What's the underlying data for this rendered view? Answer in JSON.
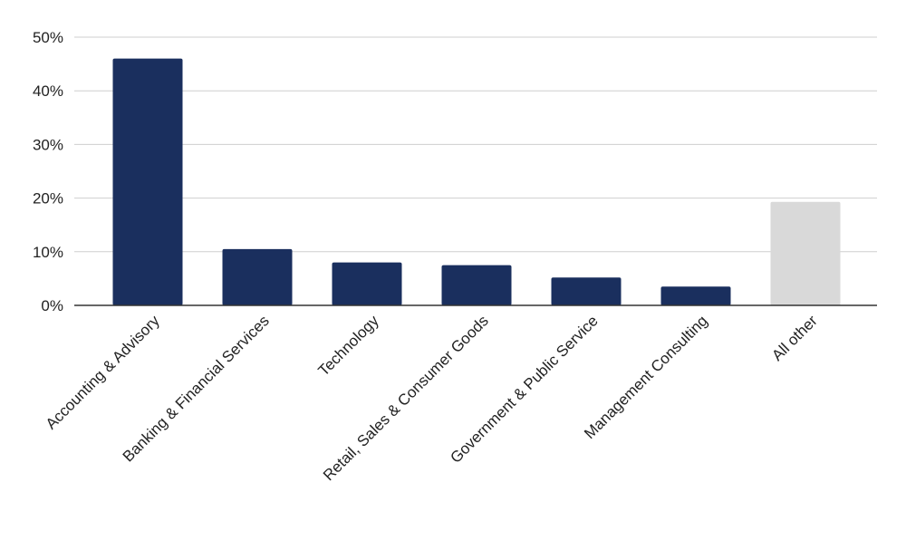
{
  "chart_data": {
    "type": "bar",
    "categories": [
      "Accounting & Advisory",
      "Banking & Financial Services",
      "Technology",
      "Retail, Sales & Consumer Goods",
      "Government & Public Service",
      "Management Consulting",
      "All other"
    ],
    "values": [
      46,
      10.5,
      8,
      7.5,
      5.2,
      3.5,
      19.3
    ],
    "colors": [
      "#1a2f5e",
      "#1a2f5e",
      "#1a2f5e",
      "#1a2f5e",
      "#1a2f5e",
      "#1a2f5e",
      "#d9d9d9"
    ],
    "ylim": [
      0,
      50
    ],
    "yticks": [
      0,
      10,
      20,
      30,
      40,
      50
    ],
    "ytick_labels": [
      "0%",
      "10%",
      "20%",
      "30%",
      "40%",
      "50%"
    ],
    "grid": true,
    "legend": "none",
    "title": "",
    "xlabel": "",
    "ylabel": ""
  }
}
